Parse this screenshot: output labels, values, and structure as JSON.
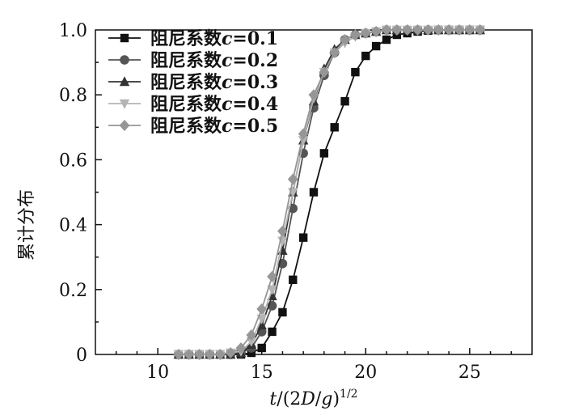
{
  "chart_data": {
    "type": "line",
    "title": "",
    "xlabel": "t/(2D/g)^1/2",
    "ylabel": "累计分布",
    "xlim": [
      7,
      28
    ],
    "ylim": [
      0,
      1.0
    ],
    "x_ticks": [
      10,
      15,
      20,
      25
    ],
    "y_ticks": [
      0,
      0.2,
      0.4,
      0.6,
      0.8,
      1.0
    ],
    "x_tick_labels": [
      "10",
      "15",
      "20",
      "25"
    ],
    "y_tick_labels": [
      "0",
      "0.2",
      "0.4",
      "0.6",
      "0.8",
      "1.0"
    ],
    "grid": false,
    "legend_position": "top-left",
    "series": [
      {
        "name": "阻尼系数c=0.1",
        "label_prefix": "阻尼系数",
        "label_var": "c",
        "label_value": "=0.1",
        "marker": "square",
        "color": "#111111",
        "x": [
          11.0,
          11.5,
          12.0,
          12.5,
          13.0,
          13.5,
          14.0,
          14.5,
          15.0,
          15.5,
          16.0,
          16.5,
          17.0,
          17.5,
          18.0,
          18.5,
          19.0,
          19.5,
          20.0,
          20.5,
          21.0,
          21.5,
          22.0,
          22.5,
          23.0,
          23.5,
          24.0,
          24.5,
          25.0,
          25.5
        ],
        "y": [
          0,
          0,
          0,
          0,
          0,
          0,
          0,
          0.005,
          0.02,
          0.07,
          0.13,
          0.23,
          0.36,
          0.5,
          0.62,
          0.7,
          0.78,
          0.87,
          0.92,
          0.95,
          0.97,
          0.985,
          0.99,
          0.995,
          0.998,
          1.0,
          1.0,
          1.0,
          1.0,
          1.0
        ]
      },
      {
        "name": "阻尼系数c=0.2",
        "label_prefix": "阻尼系数",
        "label_var": "c",
        "label_value": "=0.2",
        "marker": "circle",
        "color": "#555555",
        "x": [
          11.0,
          11.5,
          12.0,
          12.5,
          13.0,
          13.5,
          14.0,
          14.5,
          15.0,
          15.5,
          16.0,
          16.5,
          17.0,
          17.5,
          18.0,
          18.5,
          19.0,
          19.5,
          20.0,
          20.5,
          21.0,
          21.5,
          22.0,
          22.5,
          23.0,
          23.5,
          24.0,
          24.5,
          25.0,
          25.5
        ],
        "y": [
          0,
          0,
          0,
          0,
          0,
          0,
          0.005,
          0.02,
          0.07,
          0.15,
          0.28,
          0.45,
          0.62,
          0.76,
          0.86,
          0.93,
          0.97,
          0.985,
          0.99,
          0.995,
          1.0,
          1.0,
          1.0,
          1.0,
          1.0,
          1.0,
          1.0,
          1.0,
          1.0,
          1.0
        ]
      },
      {
        "name": "阻尼系数c=0.3",
        "label_prefix": "阻尼系数",
        "label_var": "c",
        "label_value": "=0.3",
        "marker": "triangle-up",
        "color": "#333333",
        "x": [
          11.0,
          11.5,
          12.0,
          12.5,
          13.0,
          13.5,
          14.0,
          14.5,
          15.0,
          15.5,
          16.0,
          16.5,
          17.0,
          17.5,
          18.0,
          18.5,
          19.0,
          19.5,
          20.0,
          20.5,
          21.0,
          21.5,
          22.0,
          22.5,
          23.0,
          23.5,
          24.0,
          24.5,
          25.0,
          25.5
        ],
        "y": [
          0,
          0,
          0,
          0,
          0,
          0,
          0.005,
          0.03,
          0.09,
          0.18,
          0.32,
          0.5,
          0.66,
          0.78,
          0.88,
          0.94,
          0.97,
          0.985,
          0.99,
          0.995,
          1.0,
          1.0,
          1.0,
          1.0,
          1.0,
          1.0,
          1.0,
          1.0,
          1.0,
          1.0
        ]
      },
      {
        "name": "阻尼系数c=0.4",
        "label_prefix": "阻尼系数",
        "label_var": "c",
        "label_value": "=0.4",
        "marker": "triangle-down",
        "color": "#b5b5b5",
        "x": [
          11.0,
          11.5,
          12.0,
          12.5,
          13.0,
          13.5,
          14.0,
          14.5,
          15.0,
          15.5,
          16.0,
          16.5,
          17.0,
          17.5,
          18.0,
          18.5,
          19.0,
          19.5,
          20.0,
          20.5,
          21.0,
          21.5,
          22.0,
          22.5,
          23.0,
          23.5,
          24.0,
          24.5,
          25.0,
          25.5
        ],
        "y": [
          0,
          0,
          0,
          0,
          0,
          0.005,
          0.01,
          0.04,
          0.11,
          0.2,
          0.35,
          0.5,
          0.66,
          0.79,
          0.87,
          0.93,
          0.96,
          0.98,
          0.99,
          0.995,
          1.0,
          1.0,
          1.0,
          1.0,
          1.0,
          1.0,
          1.0,
          1.0,
          1.0,
          1.0
        ]
      },
      {
        "name": "阻尼系数c=0.5",
        "label_prefix": "阻尼系数",
        "label_var": "c",
        "label_value": "=0.5",
        "marker": "diamond",
        "color": "#969696",
        "x": [
          11.0,
          11.5,
          12.0,
          12.5,
          13.0,
          13.5,
          14.0,
          14.5,
          15.0,
          15.5,
          16.0,
          16.5,
          17.0,
          17.5,
          18.0,
          18.5,
          19.0,
          19.5,
          20.0,
          20.5,
          21.0,
          21.5,
          22.0,
          22.5,
          23.0,
          23.5,
          24.0,
          24.5,
          25.0,
          25.5
        ],
        "y": [
          0,
          0,
          0,
          0,
          0,
          0.005,
          0.02,
          0.06,
          0.14,
          0.24,
          0.38,
          0.54,
          0.68,
          0.8,
          0.87,
          0.93,
          0.97,
          0.985,
          0.99,
          0.995,
          1.0,
          1.0,
          1.0,
          1.0,
          1.0,
          1.0,
          1.0,
          1.0,
          1.0,
          1.0
        ]
      }
    ]
  }
}
